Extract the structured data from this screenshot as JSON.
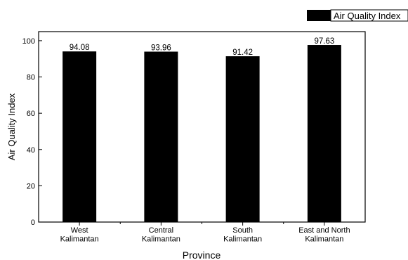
{
  "chart_data": {
    "type": "bar",
    "categories": [
      [
        "West",
        "Kalimantan"
      ],
      [
        "Central",
        "Kalimantan"
      ],
      [
        "South",
        "Kalimantan"
      ],
      [
        "East and North",
        "Kalimantan"
      ]
    ],
    "series": [
      {
        "name": "Air Quality Index",
        "values": [
          94.08,
          93.96,
          91.42,
          97.63
        ],
        "value_labels": [
          "94.08",
          "93.96",
          "91.42",
          "97.63"
        ],
        "color": "#000000"
      }
    ],
    "xlabel": "Province",
    "ylabel": "Air Quality Index",
    "ylim": [
      0,
      105
    ],
    "yticks": [
      0,
      20,
      40,
      60,
      80,
      100
    ],
    "grid": false,
    "legend_position": "top-right"
  }
}
